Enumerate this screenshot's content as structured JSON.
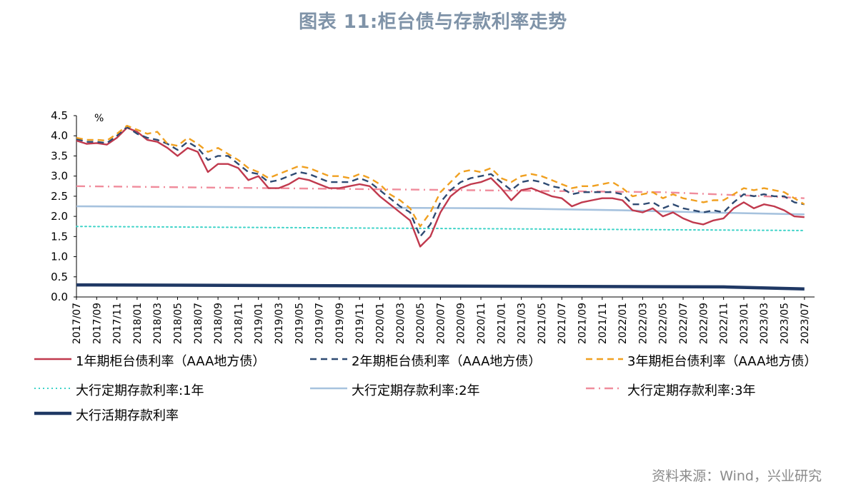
{
  "title": "图表 11:柜台债与存款利率走势",
  "source": "资料来源：Wind，兴业研究",
  "chart_data": {
    "type": "line",
    "ylabel": "%",
    "ylim": [
      0,
      4.5
    ],
    "yticks": [
      "0.0",
      "0.5",
      "1.0",
      "1.5",
      "2.0",
      "2.5",
      "3.0",
      "3.5",
      "4.0",
      "4.5"
    ],
    "x_start": "2017/07",
    "x_end": "2023/08",
    "xticks": [
      "2017/07",
      "2017/09",
      "2017/11",
      "2018/01",
      "2018/03",
      "2018/05",
      "2018/07",
      "2018/09",
      "2018/11",
      "2019/01",
      "2019/03",
      "2019/05",
      "2019/07",
      "2019/09",
      "2019/11",
      "2020/01",
      "2020/03",
      "2020/05",
      "2020/07",
      "2020/09",
      "2020/11",
      "2021/01",
      "2021/03",
      "2021/05",
      "2021/07",
      "2021/09",
      "2021/11",
      "2022/01",
      "2022/03",
      "2022/05",
      "2022/07",
      "2022/09",
      "2022/11",
      "2023/01",
      "2023/03",
      "2023/05",
      "2023/07"
    ],
    "grid": false,
    "legend_position": "bottom",
    "series": [
      {
        "name": "1年期柜台债利率（AAA地方债）",
        "color": "#c0394d",
        "style": "solid",
        "width": 2.4,
        "points": [
          [
            "2017/07",
            3.88
          ],
          [
            "2017/08",
            3.8
          ],
          [
            "2017/09",
            3.82
          ],
          [
            "2017/10",
            3.78
          ],
          [
            "2017/11",
            3.95
          ],
          [
            "2017/12",
            4.2
          ],
          [
            "2018/01",
            4.1
          ],
          [
            "2018/02",
            3.9
          ],
          [
            "2018/03",
            3.85
          ],
          [
            "2018/04",
            3.7
          ],
          [
            "2018/05",
            3.5
          ],
          [
            "2018/06",
            3.7
          ],
          [
            "2018/07",
            3.6
          ],
          [
            "2018/08",
            3.1
          ],
          [
            "2018/09",
            3.3
          ],
          [
            "2018/10",
            3.3
          ],
          [
            "2018/11",
            3.2
          ],
          [
            "2018/12",
            2.9
          ],
          [
            "2019/01",
            3.0
          ],
          [
            "2019/02",
            2.7
          ],
          [
            "2019/03",
            2.7
          ],
          [
            "2019/04",
            2.8
          ],
          [
            "2019/05",
            2.95
          ],
          [
            "2019/06",
            2.9
          ],
          [
            "2019/07",
            2.8
          ],
          [
            "2019/08",
            2.7
          ],
          [
            "2019/09",
            2.7
          ],
          [
            "2019/10",
            2.75
          ],
          [
            "2019/11",
            2.8
          ],
          [
            "2019/12",
            2.75
          ],
          [
            "2020/01",
            2.5
          ],
          [
            "2020/02",
            2.3
          ],
          [
            "2020/03",
            2.1
          ],
          [
            "2020/04",
            1.9
          ],
          [
            "2020/05",
            1.25
          ],
          [
            "2020/06",
            1.5
          ],
          [
            "2020/07",
            2.1
          ],
          [
            "2020/08",
            2.5
          ],
          [
            "2020/09",
            2.7
          ],
          [
            "2020/10",
            2.8
          ],
          [
            "2020/11",
            2.85
          ],
          [
            "2020/12",
            2.95
          ],
          [
            "2021/01",
            2.7
          ],
          [
            "2021/02",
            2.4
          ],
          [
            "2021/03",
            2.65
          ],
          [
            "2021/04",
            2.7
          ],
          [
            "2021/05",
            2.6
          ],
          [
            "2021/06",
            2.5
          ],
          [
            "2021/07",
            2.45
          ],
          [
            "2021/08",
            2.25
          ],
          [
            "2021/09",
            2.35
          ],
          [
            "2021/10",
            2.4
          ],
          [
            "2021/11",
            2.45
          ],
          [
            "2021/12",
            2.45
          ],
          [
            "2022/01",
            2.4
          ],
          [
            "2022/02",
            2.15
          ],
          [
            "2022/03",
            2.1
          ],
          [
            "2022/04",
            2.2
          ],
          [
            "2022/05",
            2.0
          ],
          [
            "2022/06",
            2.1
          ],
          [
            "2022/07",
            1.95
          ],
          [
            "2022/08",
            1.85
          ],
          [
            "2022/09",
            1.8
          ],
          [
            "2022/10",
            1.9
          ],
          [
            "2022/11",
            1.95
          ],
          [
            "2022/12",
            2.2
          ],
          [
            "2023/01",
            2.35
          ],
          [
            "2023/02",
            2.2
          ],
          [
            "2023/03",
            2.3
          ],
          [
            "2023/04",
            2.25
          ],
          [
            "2023/05",
            2.15
          ],
          [
            "2023/06",
            2.0
          ],
          [
            "2023/07",
            1.98
          ]
        ]
      },
      {
        "name": "2年期柜台债利率（AAA地方债）",
        "color": "#2e4a72",
        "style": "dash",
        "width": 2.4,
        "points": [
          [
            "2017/07",
            3.92
          ],
          [
            "2017/08",
            3.85
          ],
          [
            "2017/09",
            3.85
          ],
          [
            "2017/10",
            3.82
          ],
          [
            "2017/11",
            4.0
          ],
          [
            "2017/12",
            4.22
          ],
          [
            "2018/01",
            4.05
          ],
          [
            "2018/02",
            3.95
          ],
          [
            "2018/03",
            3.9
          ],
          [
            "2018/04",
            3.8
          ],
          [
            "2018/05",
            3.65
          ],
          [
            "2018/06",
            3.85
          ],
          [
            "2018/07",
            3.7
          ],
          [
            "2018/08",
            3.4
          ],
          [
            "2018/09",
            3.5
          ],
          [
            "2018/10",
            3.5
          ],
          [
            "2018/11",
            3.3
          ],
          [
            "2018/12",
            3.1
          ],
          [
            "2019/01",
            3.05
          ],
          [
            "2019/02",
            2.85
          ],
          [
            "2019/03",
            2.9
          ],
          [
            "2019/04",
            3.0
          ],
          [
            "2019/05",
            3.1
          ],
          [
            "2019/06",
            3.05
          ],
          [
            "2019/07",
            2.95
          ],
          [
            "2019/08",
            2.85
          ],
          [
            "2019/09",
            2.85
          ],
          [
            "2019/10",
            2.85
          ],
          [
            "2019/11",
            2.95
          ],
          [
            "2019/12",
            2.85
          ],
          [
            "2020/01",
            2.65
          ],
          [
            "2020/02",
            2.45
          ],
          [
            "2020/03",
            2.25
          ],
          [
            "2020/04",
            2.1
          ],
          [
            "2020/05",
            1.5
          ],
          [
            "2020/06",
            1.8
          ],
          [
            "2020/07",
            2.35
          ],
          [
            "2020/08",
            2.65
          ],
          [
            "2020/09",
            2.85
          ],
          [
            "2020/10",
            2.95
          ],
          [
            "2020/11",
            3.0
          ],
          [
            "2020/12",
            3.05
          ],
          [
            "2021/01",
            2.85
          ],
          [
            "2021/02",
            2.65
          ],
          [
            "2021/03",
            2.85
          ],
          [
            "2021/04",
            2.9
          ],
          [
            "2021/05",
            2.85
          ],
          [
            "2021/06",
            2.75
          ],
          [
            "2021/07",
            2.7
          ],
          [
            "2021/08",
            2.55
          ],
          [
            "2021/09",
            2.6
          ],
          [
            "2021/10",
            2.6
          ],
          [
            "2021/11",
            2.6
          ],
          [
            "2021/12",
            2.6
          ],
          [
            "2022/01",
            2.55
          ],
          [
            "2022/02",
            2.3
          ],
          [
            "2022/03",
            2.3
          ],
          [
            "2022/04",
            2.35
          ],
          [
            "2022/05",
            2.2
          ],
          [
            "2022/06",
            2.3
          ],
          [
            "2022/07",
            2.2
          ],
          [
            "2022/08",
            2.15
          ],
          [
            "2022/09",
            2.1
          ],
          [
            "2022/10",
            2.15
          ],
          [
            "2022/11",
            2.1
          ],
          [
            "2022/12",
            2.35
          ],
          [
            "2023/01",
            2.55
          ],
          [
            "2023/02",
            2.5
          ],
          [
            "2023/03",
            2.55
          ],
          [
            "2023/04",
            2.5
          ],
          [
            "2023/05",
            2.5
          ],
          [
            "2023/06",
            2.35
          ],
          [
            "2023/07",
            2.3
          ]
        ]
      },
      {
        "name": "3年期柜台债利率（AAA地方债）",
        "color": "#f0a020",
        "style": "dash",
        "width": 2.4,
        "points": [
          [
            "2017/07",
            3.95
          ],
          [
            "2017/08",
            3.9
          ],
          [
            "2017/09",
            3.9
          ],
          [
            "2017/10",
            3.88
          ],
          [
            "2017/11",
            4.05
          ],
          [
            "2017/12",
            4.25
          ],
          [
            "2018/01",
            4.15
          ],
          [
            "2018/02",
            4.05
          ],
          [
            "2018/03",
            4.1
          ],
          [
            "2018/04",
            3.8
          ],
          [
            "2018/05",
            3.75
          ],
          [
            "2018/06",
            3.95
          ],
          [
            "2018/07",
            3.8
          ],
          [
            "2018/08",
            3.6
          ],
          [
            "2018/09",
            3.7
          ],
          [
            "2018/10",
            3.55
          ],
          [
            "2018/11",
            3.4
          ],
          [
            "2018/12",
            3.2
          ],
          [
            "2019/01",
            3.1
          ],
          [
            "2019/02",
            2.95
          ],
          [
            "2019/03",
            3.05
          ],
          [
            "2019/04",
            3.15
          ],
          [
            "2019/05",
            3.25
          ],
          [
            "2019/06",
            3.2
          ],
          [
            "2019/07",
            3.1
          ],
          [
            "2019/08",
            3.0
          ],
          [
            "2019/09",
            3.0
          ],
          [
            "2019/10",
            2.95
          ],
          [
            "2019/11",
            3.05
          ],
          [
            "2019/12",
            2.95
          ],
          [
            "2020/01",
            2.8
          ],
          [
            "2020/02",
            2.55
          ],
          [
            "2020/03",
            2.4
          ],
          [
            "2020/04",
            2.2
          ],
          [
            "2020/05",
            1.75
          ],
          [
            "2020/06",
            2.1
          ],
          [
            "2020/07",
            2.6
          ],
          [
            "2020/08",
            2.85
          ],
          [
            "2020/09",
            3.1
          ],
          [
            "2020/10",
            3.15
          ],
          [
            "2020/11",
            3.1
          ],
          [
            "2020/12",
            3.2
          ],
          [
            "2021/01",
            2.95
          ],
          [
            "2021/02",
            2.85
          ],
          [
            "2021/03",
            3.0
          ],
          [
            "2021/04",
            3.05
          ],
          [
            "2021/05",
            3.0
          ],
          [
            "2021/06",
            2.9
          ],
          [
            "2021/07",
            2.8
          ],
          [
            "2021/08",
            2.7
          ],
          [
            "2021/09",
            2.75
          ],
          [
            "2021/10",
            2.75
          ],
          [
            "2021/11",
            2.8
          ],
          [
            "2021/12",
            2.85
          ],
          [
            "2022/01",
            2.7
          ],
          [
            "2022/02",
            2.5
          ],
          [
            "2022/03",
            2.55
          ],
          [
            "2022/04",
            2.6
          ],
          [
            "2022/05",
            2.45
          ],
          [
            "2022/06",
            2.55
          ],
          [
            "2022/07",
            2.45
          ],
          [
            "2022/08",
            2.4
          ],
          [
            "2022/09",
            2.35
          ],
          [
            "2022/10",
            2.4
          ],
          [
            "2022/11",
            2.4
          ],
          [
            "2022/12",
            2.55
          ],
          [
            "2023/01",
            2.7
          ],
          [
            "2023/02",
            2.65
          ],
          [
            "2023/03",
            2.7
          ],
          [
            "2023/04",
            2.65
          ],
          [
            "2023/05",
            2.6
          ],
          [
            "2023/06",
            2.45
          ],
          [
            "2023/07",
            2.3
          ]
        ]
      },
      {
        "name": "大行定期存款利率:1年",
        "color": "#3fd3c8",
        "style": "dot",
        "width": 2,
        "points": [
          [
            "2017/07",
            1.75
          ],
          [
            "2023/07",
            1.65
          ]
        ]
      },
      {
        "name": "大行定期存款利率:2年",
        "color": "#a6c2de",
        "style": "solid",
        "width": 2.6,
        "points": [
          [
            "2017/07",
            2.25
          ],
          [
            "2021/01",
            2.2
          ],
          [
            "2022/01",
            2.15
          ],
          [
            "2022/09",
            2.1
          ],
          [
            "2023/07",
            2.05
          ]
        ]
      },
      {
        "name": "大行定期存款利率:3年",
        "color": "#f08c9c",
        "style": "dashdot",
        "width": 2.4,
        "points": [
          [
            "2017/07",
            2.75
          ],
          [
            "2022/05",
            2.6
          ],
          [
            "2023/03",
            2.5
          ],
          [
            "2023/07",
            2.45
          ]
        ]
      },
      {
        "name": "大行活期存款利率",
        "color": "#1f3864",
        "style": "solid",
        "width": 4.5,
        "points": [
          [
            "2017/07",
            0.3
          ],
          [
            "2022/11",
            0.25
          ],
          [
            "2023/07",
            0.2
          ]
        ]
      }
    ]
  }
}
